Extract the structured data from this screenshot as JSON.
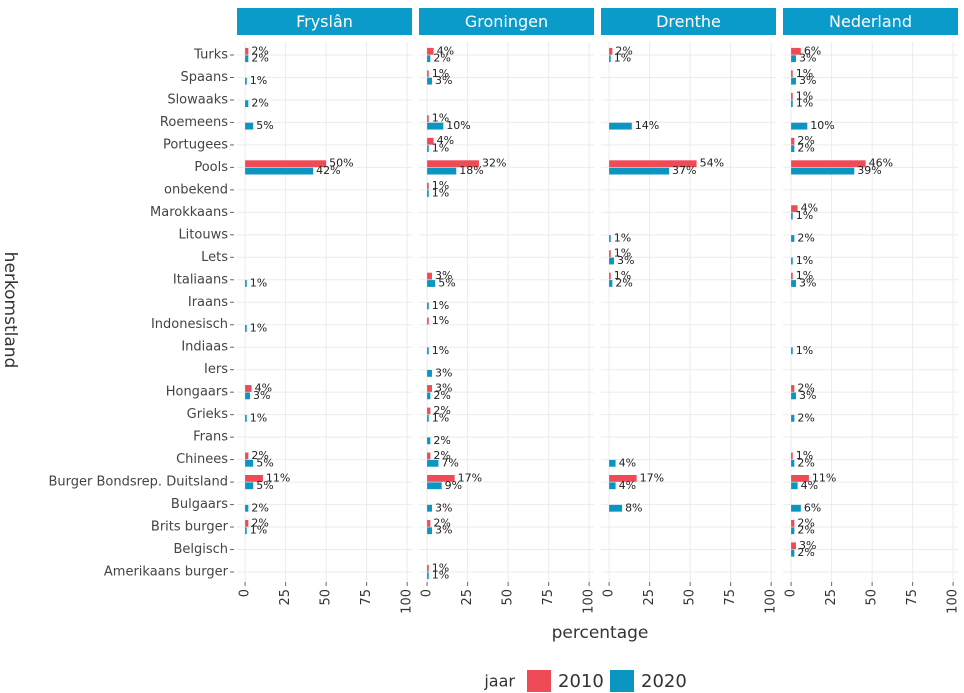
{
  "chart_data": {
    "type": "bar",
    "categories": [
      "Turks",
      "Spaans",
      "Slowaaks",
      "Roemeens",
      "Portugees",
      "Pools",
      "onbekend",
      "Marokkaans",
      "Litouws",
      "Lets",
      "Italiaans",
      "Iraans",
      "Indonesisch",
      "Indiaas",
      "Iers",
      "Hongaars",
      "Grieks",
      "Frans",
      "Chinees",
      "Burger Bondsrep. Duitsland",
      "Bulgaars",
      "Brits burger",
      "Belgisch",
      "Amerikaans burger"
    ],
    "x_label": "percentage",
    "y_label": "herkomstland",
    "legend_title": "jaar",
    "xlim": [
      -5,
      103
    ],
    "xticks": [
      0,
      25,
      50,
      75,
      100
    ],
    "grid": true,
    "panels": [
      {
        "title": "Fryslân",
        "series": [
          {
            "name": "2010",
            "color": "#ee4b57",
            "values": [
              2,
              null,
              null,
              null,
              null,
              50,
              null,
              null,
              null,
              null,
              null,
              null,
              null,
              null,
              null,
              4,
              null,
              null,
              2,
              11,
              null,
              2,
              null,
              null
            ],
            "value_labels": [
              "2%",
              null,
              null,
              null,
              null,
              "50%",
              null,
              null,
              null,
              null,
              null,
              null,
              null,
              null,
              null,
              "4%",
              null,
              null,
              "2%",
              "11%",
              null,
              "2%",
              null,
              null
            ]
          },
          {
            "name": "2020",
            "color": "#0b95c2",
            "values": [
              2,
              1,
              2,
              5,
              null,
              42,
              null,
              null,
              null,
              null,
              1,
              null,
              1,
              null,
              null,
              3,
              1,
              null,
              5,
              5,
              2,
              1,
              null,
              null
            ],
            "value_labels": [
              "2%",
              "1%",
              "2%",
              "5%",
              null,
              "42%",
              null,
              null,
              null,
              null,
              "1%",
              null,
              "1%",
              null,
              null,
              "3%",
              "1%",
              null,
              "5%",
              "5%",
              "2%",
              "1%",
              null,
              null
            ]
          }
        ]
      },
      {
        "title": "Groningen",
        "series": [
          {
            "name": "2010",
            "color": "#ee4b57",
            "values": [
              4,
              1,
              null,
              1,
              4,
              32,
              1,
              null,
              null,
              null,
              3,
              null,
              1,
              null,
              null,
              3,
              2,
              null,
              2,
              17,
              null,
              2,
              null,
              1
            ],
            "value_labels": [
              "4%",
              "1%",
              null,
              "1%",
              "4%",
              "32%",
              "1%",
              null,
              null,
              null,
              "3%",
              null,
              "1%",
              null,
              null,
              "3%",
              "2%",
              null,
              "2%",
              "17%",
              null,
              "2%",
              null,
              "1%"
            ]
          },
          {
            "name": "2020",
            "color": "#0b95c2",
            "values": [
              2,
              3,
              null,
              10,
              1,
              18,
              1,
              null,
              null,
              null,
              5,
              1,
              null,
              1,
              3,
              2,
              1,
              2,
              7,
              9,
              3,
              3,
              null,
              1
            ],
            "value_labels": [
              "2%",
              "3%",
              null,
              "10%",
              "1%",
              "18%",
              "1%",
              null,
              null,
              null,
              "5%",
              "1%",
              null,
              "1%",
              "3%",
              "2%",
              "1%",
              "2%",
              "7%",
              "9%",
              "3%",
              "3%",
              null,
              "1%"
            ]
          }
        ]
      },
      {
        "title": "Drenthe",
        "series": [
          {
            "name": "2010",
            "color": "#ee4b57",
            "values": [
              2,
              null,
              null,
              null,
              null,
              54,
              null,
              null,
              null,
              1,
              1,
              null,
              null,
              null,
              null,
              null,
              null,
              null,
              null,
              17,
              null,
              null,
              null,
              null
            ],
            "value_labels": [
              "2%",
              null,
              null,
              null,
              null,
              "54%",
              null,
              null,
              null,
              "1%",
              "1%",
              null,
              null,
              null,
              null,
              null,
              null,
              null,
              null,
              "17%",
              null,
              null,
              null,
              null
            ]
          },
          {
            "name": "2020",
            "color": "#0b95c2",
            "values": [
              1,
              null,
              null,
              14,
              null,
              37,
              null,
              null,
              1,
              3,
              2,
              null,
              null,
              null,
              null,
              null,
              null,
              null,
              4,
              4,
              8,
              null,
              null,
              null
            ],
            "value_labels": [
              "1%",
              null,
              null,
              "14%",
              null,
              "37%",
              null,
              null,
              "1%",
              "3%",
              "2%",
              null,
              null,
              null,
              null,
              null,
              null,
              null,
              "4%",
              "4%",
              "8%",
              null,
              null,
              null
            ]
          }
        ]
      },
      {
        "title": "Nederland",
        "series": [
          {
            "name": "2010",
            "color": "#ee4b57",
            "values": [
              6,
              1,
              1,
              null,
              2,
              46,
              null,
              4,
              null,
              null,
              1,
              null,
              null,
              null,
              null,
              2,
              null,
              null,
              1,
              11,
              null,
              2,
              3,
              null
            ],
            "value_labels": [
              "6%",
              "1%",
              "1%",
              null,
              "2%",
              "46%",
              null,
              "4%",
              null,
              null,
              "1%",
              null,
              null,
              null,
              null,
              "2%",
              null,
              null,
              "1%",
              "11%",
              null,
              "2%",
              "3%",
              null
            ]
          },
          {
            "name": "2020",
            "color": "#0b95c2",
            "values": [
              3,
              3,
              1,
              10,
              2,
              39,
              null,
              1,
              2,
              1,
              3,
              null,
              null,
              1,
              null,
              3,
              2,
              null,
              2,
              4,
              6,
              2,
              2,
              null
            ],
            "value_labels": [
              "3%",
              "3%",
              "1%",
              "10%",
              "2%",
              "39%",
              null,
              "1%",
              "2%",
              "1%",
              "3%",
              null,
              null,
              "1%",
              null,
              "3%",
              "2%",
              null,
              "2%",
              "4%",
              "6%",
              "2%",
              "2%",
              null
            ]
          }
        ]
      }
    ]
  }
}
